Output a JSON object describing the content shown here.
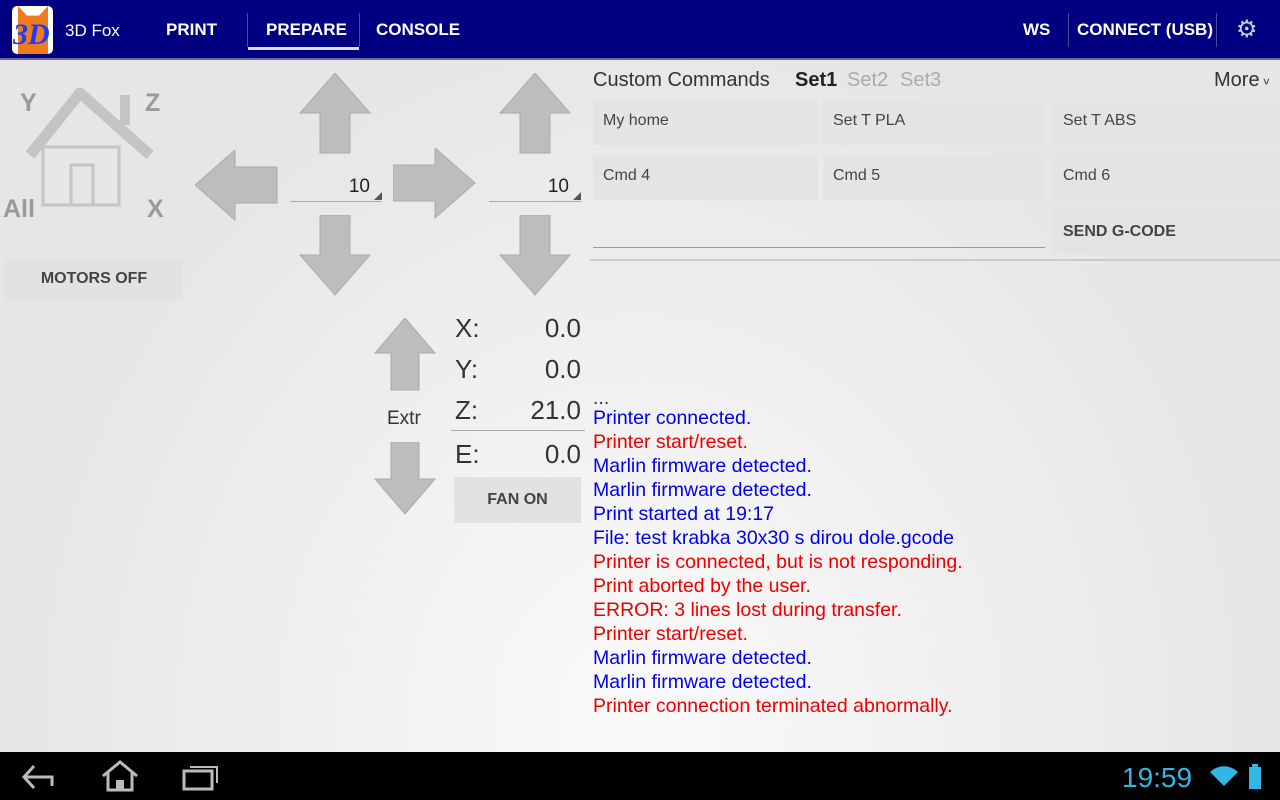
{
  "topbar": {
    "app_name": "3D Fox",
    "logo_text": "3D",
    "tabs": [
      "PRINT",
      "PREPARE",
      "CONSOLE"
    ],
    "active_tab": "PREPARE",
    "ws": "WS",
    "connect": "CONNECT (USB)"
  },
  "home": {
    "labels": {
      "y": "Y",
      "z": "Z",
      "all": "All",
      "x": "X"
    },
    "motors_off": "MOTORS OFF"
  },
  "jog": {
    "xy_step": "10",
    "z_step": "10",
    "extruder_label": "Extr",
    "fan": "FAN ON"
  },
  "position": [
    {
      "axis": "X:",
      "value": "0.0"
    },
    {
      "axis": "Y:",
      "value": "0.0"
    },
    {
      "axis": "Z:",
      "value": "21.0"
    },
    {
      "axis": "E:",
      "value": "0.0"
    }
  ],
  "custom": {
    "title": "Custom Commands",
    "sets": [
      "Set1",
      "Set2",
      "Set3"
    ],
    "active_set": "Set1",
    "more": "More",
    "commands": [
      "My home",
      "Set T PLA",
      "Set T ABS",
      "Cmd 4",
      "Cmd 5",
      "Cmd 6"
    ],
    "gcode_input": "",
    "send": "SEND G-CODE"
  },
  "colors": {
    "info": "#0000ee",
    "error": "#ee0000",
    "bar": "#000080",
    "clock": "#33b5e5"
  },
  "log": [
    {
      "text": "...",
      "type": "plain"
    },
    {
      "text": "Printer connected.",
      "type": "info"
    },
    {
      "text": "Printer start/reset.",
      "type": "error"
    },
    {
      "text": "Marlin firmware detected.",
      "type": "info"
    },
    {
      "text": "Marlin firmware detected.",
      "type": "info"
    },
    {
      "text": "Print started at 19:17",
      "type": "info"
    },
    {
      "text": "File: test krabka 30x30 s dirou dole.gcode",
      "type": "info"
    },
    {
      "text": "Printer is connected, but is not responding.",
      "type": "error"
    },
    {
      "text": "Print aborted by the user.",
      "type": "error"
    },
    {
      "text": "ERROR: 3 lines lost during transfer.",
      "type": "error"
    },
    {
      "text": "Printer start/reset.",
      "type": "error"
    },
    {
      "text": "Marlin firmware detected.",
      "type": "info"
    },
    {
      "text": "Marlin firmware detected.",
      "type": "info"
    },
    {
      "text": "Printer connection terminated abnormally.",
      "type": "error"
    }
  ],
  "statusbar": {
    "time": "19:59"
  }
}
